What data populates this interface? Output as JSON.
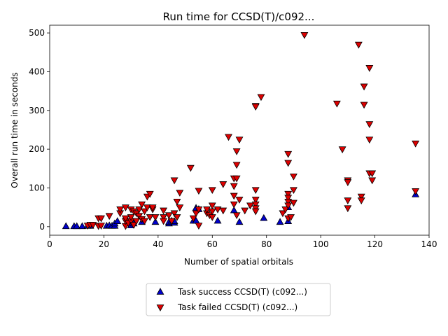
{
  "chart_data": {
    "type": "scatter",
    "title": "Run time for CCSD(T)/c092...",
    "xlabel": "Number of spatial orbitals",
    "ylabel": "Overall run time in seconds",
    "xlim": [
      0,
      140
    ],
    "ylim": [
      -22,
      520
    ],
    "xticks": [
      "0",
      "20",
      "40",
      "60",
      "80",
      "100",
      "120",
      "140"
    ],
    "yticks": [
      "0",
      "100",
      "200",
      "300",
      "400",
      "500"
    ],
    "grid": false,
    "legend_position": "below",
    "series": [
      {
        "name": "Task success CCSD(T) (c092...)",
        "marker": "triangle-up",
        "color": "#0000cc",
        "points": [
          [
            6,
            1
          ],
          [
            9,
            1
          ],
          [
            10,
            1
          ],
          [
            12,
            1
          ],
          [
            14,
            2
          ],
          [
            15,
            2
          ],
          [
            21,
            2
          ],
          [
            22,
            3
          ],
          [
            23,
            2
          ],
          [
            24,
            2
          ],
          [
            24,
            8
          ],
          [
            25,
            14
          ],
          [
            30,
            3
          ],
          [
            31,
            8
          ],
          [
            34,
            12
          ],
          [
            39,
            12
          ],
          [
            44,
            8
          ],
          [
            44,
            12
          ],
          [
            45,
            15
          ],
          [
            46,
            10
          ],
          [
            46,
            14
          ],
          [
            53,
            15
          ],
          [
            54,
            15
          ],
          [
            54,
            48
          ],
          [
            55,
            45
          ],
          [
            62,
            15
          ],
          [
            68,
            42
          ],
          [
            70,
            12
          ],
          [
            79,
            22
          ],
          [
            85,
            12
          ],
          [
            88,
            14
          ],
          [
            88,
            50
          ],
          [
            135,
            83
          ]
        ]
      },
      {
        "name": "Task failed CCSD(T) (c092...)",
        "marker": "triangle-down",
        "color": "#dd0000",
        "points": [
          [
            14,
            3
          ],
          [
            15,
            5
          ],
          [
            16,
            5
          ],
          [
            18,
            2
          ],
          [
            18,
            22
          ],
          [
            19,
            3
          ],
          [
            19,
            22
          ],
          [
            22,
            28
          ],
          [
            26,
            35
          ],
          [
            26,
            45
          ],
          [
            28,
            2
          ],
          [
            28,
            15
          ],
          [
            28,
            22
          ],
          [
            28,
            50
          ],
          [
            29,
            10
          ],
          [
            30,
            15
          ],
          [
            30,
            25
          ],
          [
            30,
            45
          ],
          [
            31,
            5
          ],
          [
            31,
            40
          ],
          [
            32,
            15
          ],
          [
            32,
            35
          ],
          [
            33,
            28
          ],
          [
            33,
            45
          ],
          [
            34,
            20
          ],
          [
            34,
            58
          ],
          [
            35,
            40
          ],
          [
            35,
            15
          ],
          [
            36,
            50
          ],
          [
            36,
            78
          ],
          [
            37,
            25
          ],
          [
            37,
            85
          ],
          [
            38,
            45
          ],
          [
            38,
            50
          ],
          [
            39,
            25
          ],
          [
            42,
            42
          ],
          [
            42,
            25
          ],
          [
            42,
            15
          ],
          [
            44,
            30
          ],
          [
            45,
            15
          ],
          [
            46,
            35
          ],
          [
            46,
            120
          ],
          [
            47,
            65
          ],
          [
            47,
            25
          ],
          [
            48,
            50
          ],
          [
            48,
            88
          ],
          [
            52,
            152
          ],
          [
            53,
            22
          ],
          [
            54,
            35
          ],
          [
            55,
            3
          ],
          [
            55,
            45
          ],
          [
            55,
            93
          ],
          [
            58,
            35
          ],
          [
            58,
            45
          ],
          [
            59,
            30
          ],
          [
            60,
            95
          ],
          [
            60,
            55
          ],
          [
            60,
            25
          ],
          [
            60,
            40
          ],
          [
            62,
            45
          ],
          [
            64,
            110
          ],
          [
            64,
            42
          ],
          [
            66,
            232
          ],
          [
            68,
            125
          ],
          [
            68,
            105
          ],
          [
            68,
            80
          ],
          [
            68,
            58
          ],
          [
            69,
            30
          ],
          [
            69,
            195
          ],
          [
            69,
            160
          ],
          [
            69,
            125
          ],
          [
            70,
            225
          ],
          [
            70,
            70
          ],
          [
            72,
            42
          ],
          [
            74,
            55
          ],
          [
            76,
            312
          ],
          [
            76,
            310
          ],
          [
            76,
            95
          ],
          [
            76,
            70
          ],
          [
            76,
            58
          ],
          [
            76,
            48
          ],
          [
            76,
            40
          ],
          [
            78,
            335
          ],
          [
            86,
            35
          ],
          [
            87,
            45
          ],
          [
            88,
            188
          ],
          [
            88,
            165
          ],
          [
            88,
            85
          ],
          [
            88,
            75
          ],
          [
            88,
            65
          ],
          [
            88,
            55
          ],
          [
            88,
            22
          ],
          [
            89,
            25
          ],
          [
            90,
            130
          ],
          [
            90,
            95
          ],
          [
            90,
            62
          ],
          [
            94,
            495
          ],
          [
            106,
            318
          ],
          [
            108,
            200
          ],
          [
            110,
            120
          ],
          [
            110,
            115
          ],
          [
            110,
            68
          ],
          [
            110,
            48
          ],
          [
            114,
            470
          ],
          [
            115,
            78
          ],
          [
            115,
            68
          ],
          [
            116,
            362
          ],
          [
            116,
            315
          ],
          [
            118,
            410
          ],
          [
            118,
            265
          ],
          [
            118,
            225
          ],
          [
            118,
            138
          ],
          [
            119,
            138
          ],
          [
            119,
            120
          ],
          [
            135,
            215
          ],
          [
            135,
            92
          ]
        ]
      }
    ]
  }
}
